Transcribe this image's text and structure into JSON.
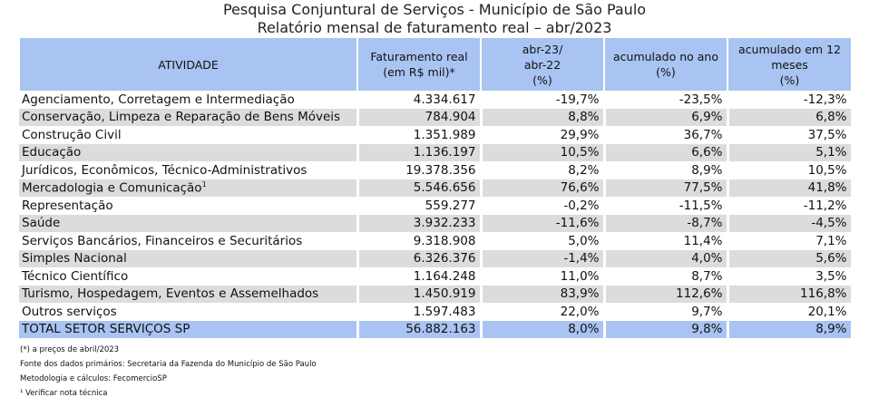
{
  "title_line1": "Pesquisa Conjuntural de Serviços - Município de São Paulo",
  "title_line2": "Relatório mensal de faturamento real – abr/2023",
  "headers": {
    "atividade": "ATIVIDADE",
    "faturamento_1": "Faturamento real",
    "faturamento_2": "(em R$ mil)*",
    "abr_1": "abr-23/",
    "abr_2": "abr-22",
    "abr_3": "(%)",
    "acum_ano_1": "acumulado no ano",
    "acum_ano_2": "(%)",
    "acum_12_1": "acumulado em 12",
    "acum_12_2": "meses",
    "acum_12_3": "(%)"
  },
  "rows": [
    {
      "atividade": "Agenciamento, Corretagem e Intermediação",
      "faturamento": "4.334.617",
      "abr": "-19,7%",
      "acum_ano": "-23,5%",
      "acum_12": "-12,3%"
    },
    {
      "atividade": "Conservação, Limpeza e Reparação de Bens Móveis",
      "faturamento": "784.904",
      "abr": "8,8%",
      "acum_ano": "6,9%",
      "acum_12": "6,8%"
    },
    {
      "atividade": "Construção Civil",
      "faturamento": "1.351.989",
      "abr": "29,9%",
      "acum_ano": "36,7%",
      "acum_12": "37,5%"
    },
    {
      "atividade": "Educação",
      "faturamento": "1.136.197",
      "abr": "10,5%",
      "acum_ano": "6,6%",
      "acum_12": "5,1%"
    },
    {
      "atividade": "Jurídicos, Econômicos, Técnico-Administrativos",
      "faturamento": "19.378.356",
      "abr": "8,2%",
      "acum_ano": "8,9%",
      "acum_12": "10,5%"
    },
    {
      "atividade": "Mercadologia  e Comunicação",
      "sup": "1",
      "faturamento": "5.546.656",
      "abr": "76,6%",
      "acum_ano": "77,5%",
      "acum_12": "41,8%"
    },
    {
      "atividade": "Representação",
      "faturamento": "559.277",
      "abr": "-0,2%",
      "acum_ano": "-11,5%",
      "acum_12": "-11,2%"
    },
    {
      "atividade": "Saúde",
      "faturamento": "3.932.233",
      "abr": "-11,6%",
      "acum_ano": "-8,7%",
      "acum_12": "-4,5%"
    },
    {
      "atividade": "Serviços Bancários, Financeiros e Securitários",
      "faturamento": "9.318.908",
      "abr": "5,0%",
      "acum_ano": "11,4%",
      "acum_12": "7,1%"
    },
    {
      "atividade": "Simples Nacional",
      "faturamento": "6.326.376",
      "abr": "-1,4%",
      "acum_ano": "4,0%",
      "acum_12": "5,6%"
    },
    {
      "atividade": "Técnico Científico",
      "faturamento": "1.164.248",
      "abr": "11,0%",
      "acum_ano": "8,7%",
      "acum_12": "3,5%"
    },
    {
      "atividade": "Turismo, Hospedagem, Eventos e Assemelhados",
      "faturamento": "1.450.919",
      "abr": "83,9%",
      "acum_ano": "112,6%",
      "acum_12": "116,8%"
    },
    {
      "atividade": "Outros serviços",
      "faturamento": "1.597.483",
      "abr": "22,0%",
      "acum_ano": "9,7%",
      "acum_12": "20,1%"
    }
  ],
  "total": {
    "atividade": "TOTAL SETOR SERVIÇOS SP",
    "faturamento": "56.882.163",
    "abr": "8,0%",
    "acum_ano": "9,8%",
    "acum_12": "8,9%"
  },
  "notes": [
    "(*) a preços de abril/2023",
    "Fonte dos dados primários: Secretaria da Fazenda do Município de São Paulo",
    "Metodologia e cálculos: FecomercioSP",
    "¹ Verificar nota técnica"
  ]
}
